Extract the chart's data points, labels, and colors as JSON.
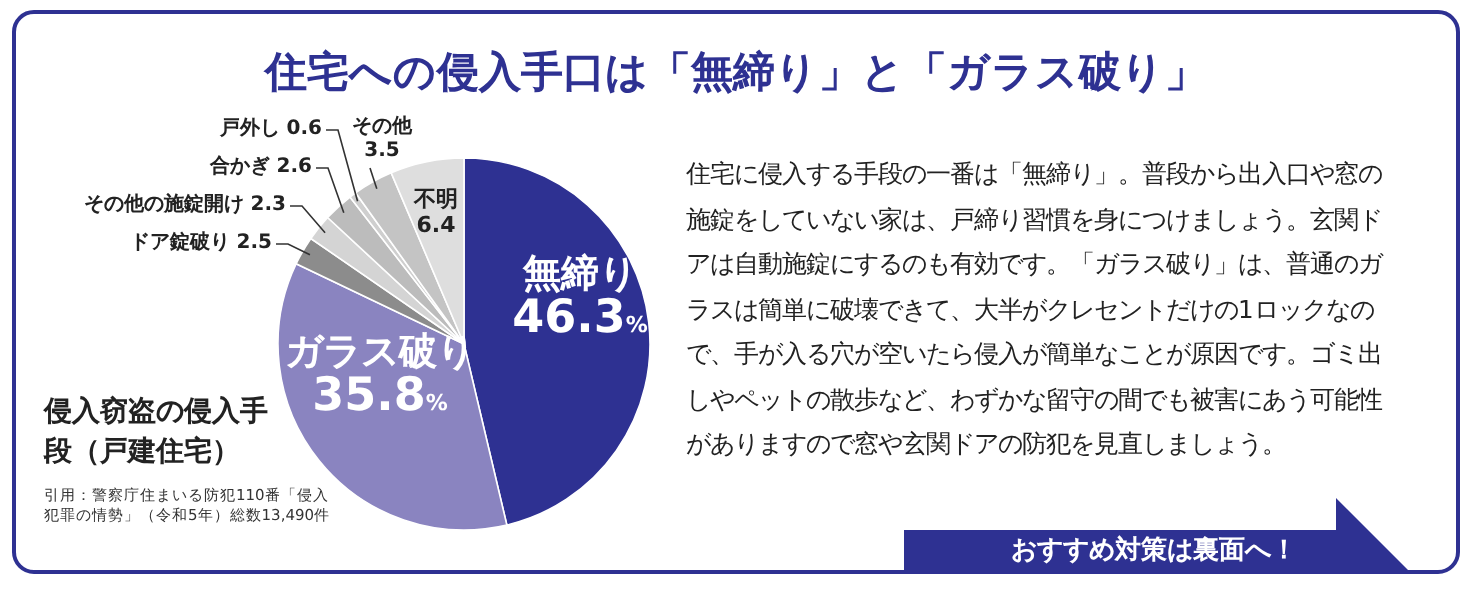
{
  "chart_data": {
    "type": "pie",
    "title": "住宅への侵入手口は「無締り」と「ガラス破り」",
    "subtitle": "侵入窃盗の侵入手段（戸建住宅）",
    "categories": [
      "無締り",
      "ガラス破り",
      "ドア錠破り",
      "その他の施錠開け",
      "合かぎ",
      "戸外し",
      "その他",
      "不明"
    ],
    "values": [
      46.3,
      35.8,
      2.5,
      2.3,
      2.6,
      0.6,
      3.5,
      6.4
    ],
    "value_labels": [
      "46.3%",
      "35.8%",
      "2.5",
      "2.3",
      "2.6",
      "0.6",
      "3.5",
      "6.4"
    ],
    "colors": [
      "#2e3192",
      "#8a84c0",
      "#8c8c8c",
      "#d4d4d4",
      "#bcbcbc",
      "#cfcfcf",
      "#c4c4c4",
      "#dedede"
    ],
    "annotations": [
      "引用：警察庁住まいる防犯110番「侵入犯罪の情勢」（令和5年）総数13,490件",
      "住宅に侵入する手段の一番は「無締り」。普段から出入口や窓の施錠をしていない家は、戸締り習慣を身につけましょう。玄関ドアは自動施錠にするのも有効です。「ガラス破り」は、普通のガラスは簡単に破壊できて、大半がクレセントだけの1ロックなので、手が入る穴が空いたら侵入が簡単なことが原因です。ゴミ出しやペットの散歩など、わずかな留守の間でも被害にあう可能性がありますので窓や玄関ドアの防犯を見直しましょう。",
      "おすすめ対策は裏面へ！"
    ]
  }
}
